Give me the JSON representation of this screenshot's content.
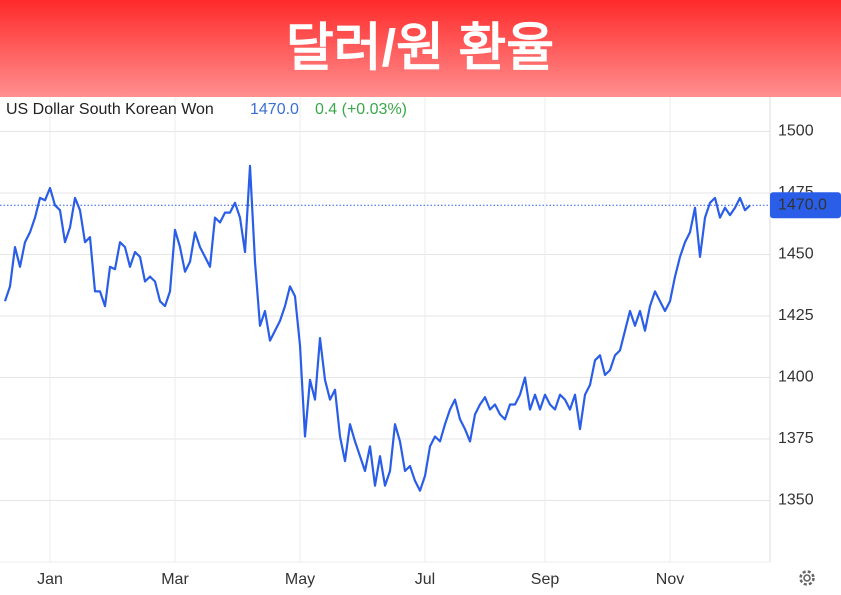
{
  "header": {
    "title": "달러/원 환율"
  },
  "chart_data": {
    "type": "line",
    "title": "US Dollar South Korean Won",
    "last": {
      "value": 1470,
      "label": "1470.0"
    },
    "change": "0.4 (+0.03%)",
    "color": "#2a5ee8",
    "grid": true,
    "categories": [
      null,
      null,
      null,
      null,
      null,
      null,
      null,
      null,
      null,
      "Jan",
      null,
      null,
      null,
      null,
      null,
      null,
      null,
      null,
      null,
      null,
      null,
      null,
      null,
      null,
      null,
      null,
      null,
      null,
      null,
      null,
      null,
      null,
      null,
      null,
      "Mar",
      null,
      null,
      null,
      null,
      null,
      null,
      null,
      null,
      null,
      null,
      null,
      null,
      null,
      null,
      null,
      null,
      null,
      null,
      null,
      null,
      null,
      null,
      null,
      null,
      "May",
      null,
      null,
      null,
      null,
      null,
      null,
      null,
      null,
      null,
      null,
      null,
      null,
      null,
      null,
      null,
      null,
      null,
      null,
      null,
      null,
      null,
      null,
      null,
      null,
      "Jul",
      null,
      null,
      null,
      null,
      null,
      null,
      null,
      null,
      null,
      null,
      null,
      null,
      null,
      null,
      null,
      null,
      null,
      null,
      null,
      null,
      null,
      null,
      null,
      "Sep",
      null,
      null,
      null,
      null,
      null,
      null,
      null,
      null,
      null,
      null,
      null,
      null,
      null,
      null,
      null,
      null,
      null,
      null,
      null,
      null,
      null,
      null,
      null,
      null,
      "Nov",
      null,
      null,
      null,
      null,
      null,
      null,
      null,
      null,
      null,
      null,
      null,
      null,
      null,
      null,
      null,
      null
    ],
    "values": [
      1431,
      1437,
      1453,
      1445,
      1455,
      1459,
      1465,
      1473,
      1472,
      1477,
      1470,
      1468,
      1455,
      1461,
      1473,
      1468,
      1455,
      1457,
      1435,
      1435,
      1429,
      1445,
      1444,
      1455,
      1453,
      1445,
      1451,
      1449,
      1439,
      1441,
      1439,
      1431,
      1429,
      1435,
      1460,
      1453,
      1443,
      1447,
      1459,
      1453,
      1449,
      1445,
      1465,
      1463,
      1467,
      1467,
      1471,
      1465,
      1451,
      1486,
      1447,
      1421,
      1427,
      1415,
      1419,
      1423,
      1429,
      1437,
      1433,
      1413,
      1376,
      1399,
      1391,
      1416,
      1399,
      1391,
      1395,
      1376,
      1366,
      1381,
      1374,
      1368,
      1362,
      1372,
      1356,
      1368,
      1356,
      1362,
      1381,
      1374,
      1362,
      1364,
      1358,
      1354,
      1360,
      1372,
      1376,
      1374,
      1381,
      1387,
      1391,
      1383,
      1379,
      1374,
      1385,
      1389,
      1392,
      1387,
      1389,
      1385,
      1383,
      1389,
      1389,
      1393,
      1400,
      1387,
      1393,
      1387,
      1393,
      1389,
      1387,
      1393,
      1391,
      1387,
      1393,
      1379,
      1393,
      1397,
      1407,
      1409,
      1401,
      1403,
      1409,
      1411,
      1419,
      1427,
      1421,
      1427,
      1419,
      1429,
      1435,
      1431,
      1427,
      1431,
      1441,
      1449,
      1455,
      1459,
      1469,
      1449,
      1465,
      1471,
      1473,
      1465,
      1469,
      1466,
      1469,
      1473,
      1468,
      1470
    ],
    "ylim": [
      1325,
      1514
    ],
    "yticks": [
      1350,
      1375,
      1400,
      1425,
      1450,
      1475,
      1500
    ]
  }
}
